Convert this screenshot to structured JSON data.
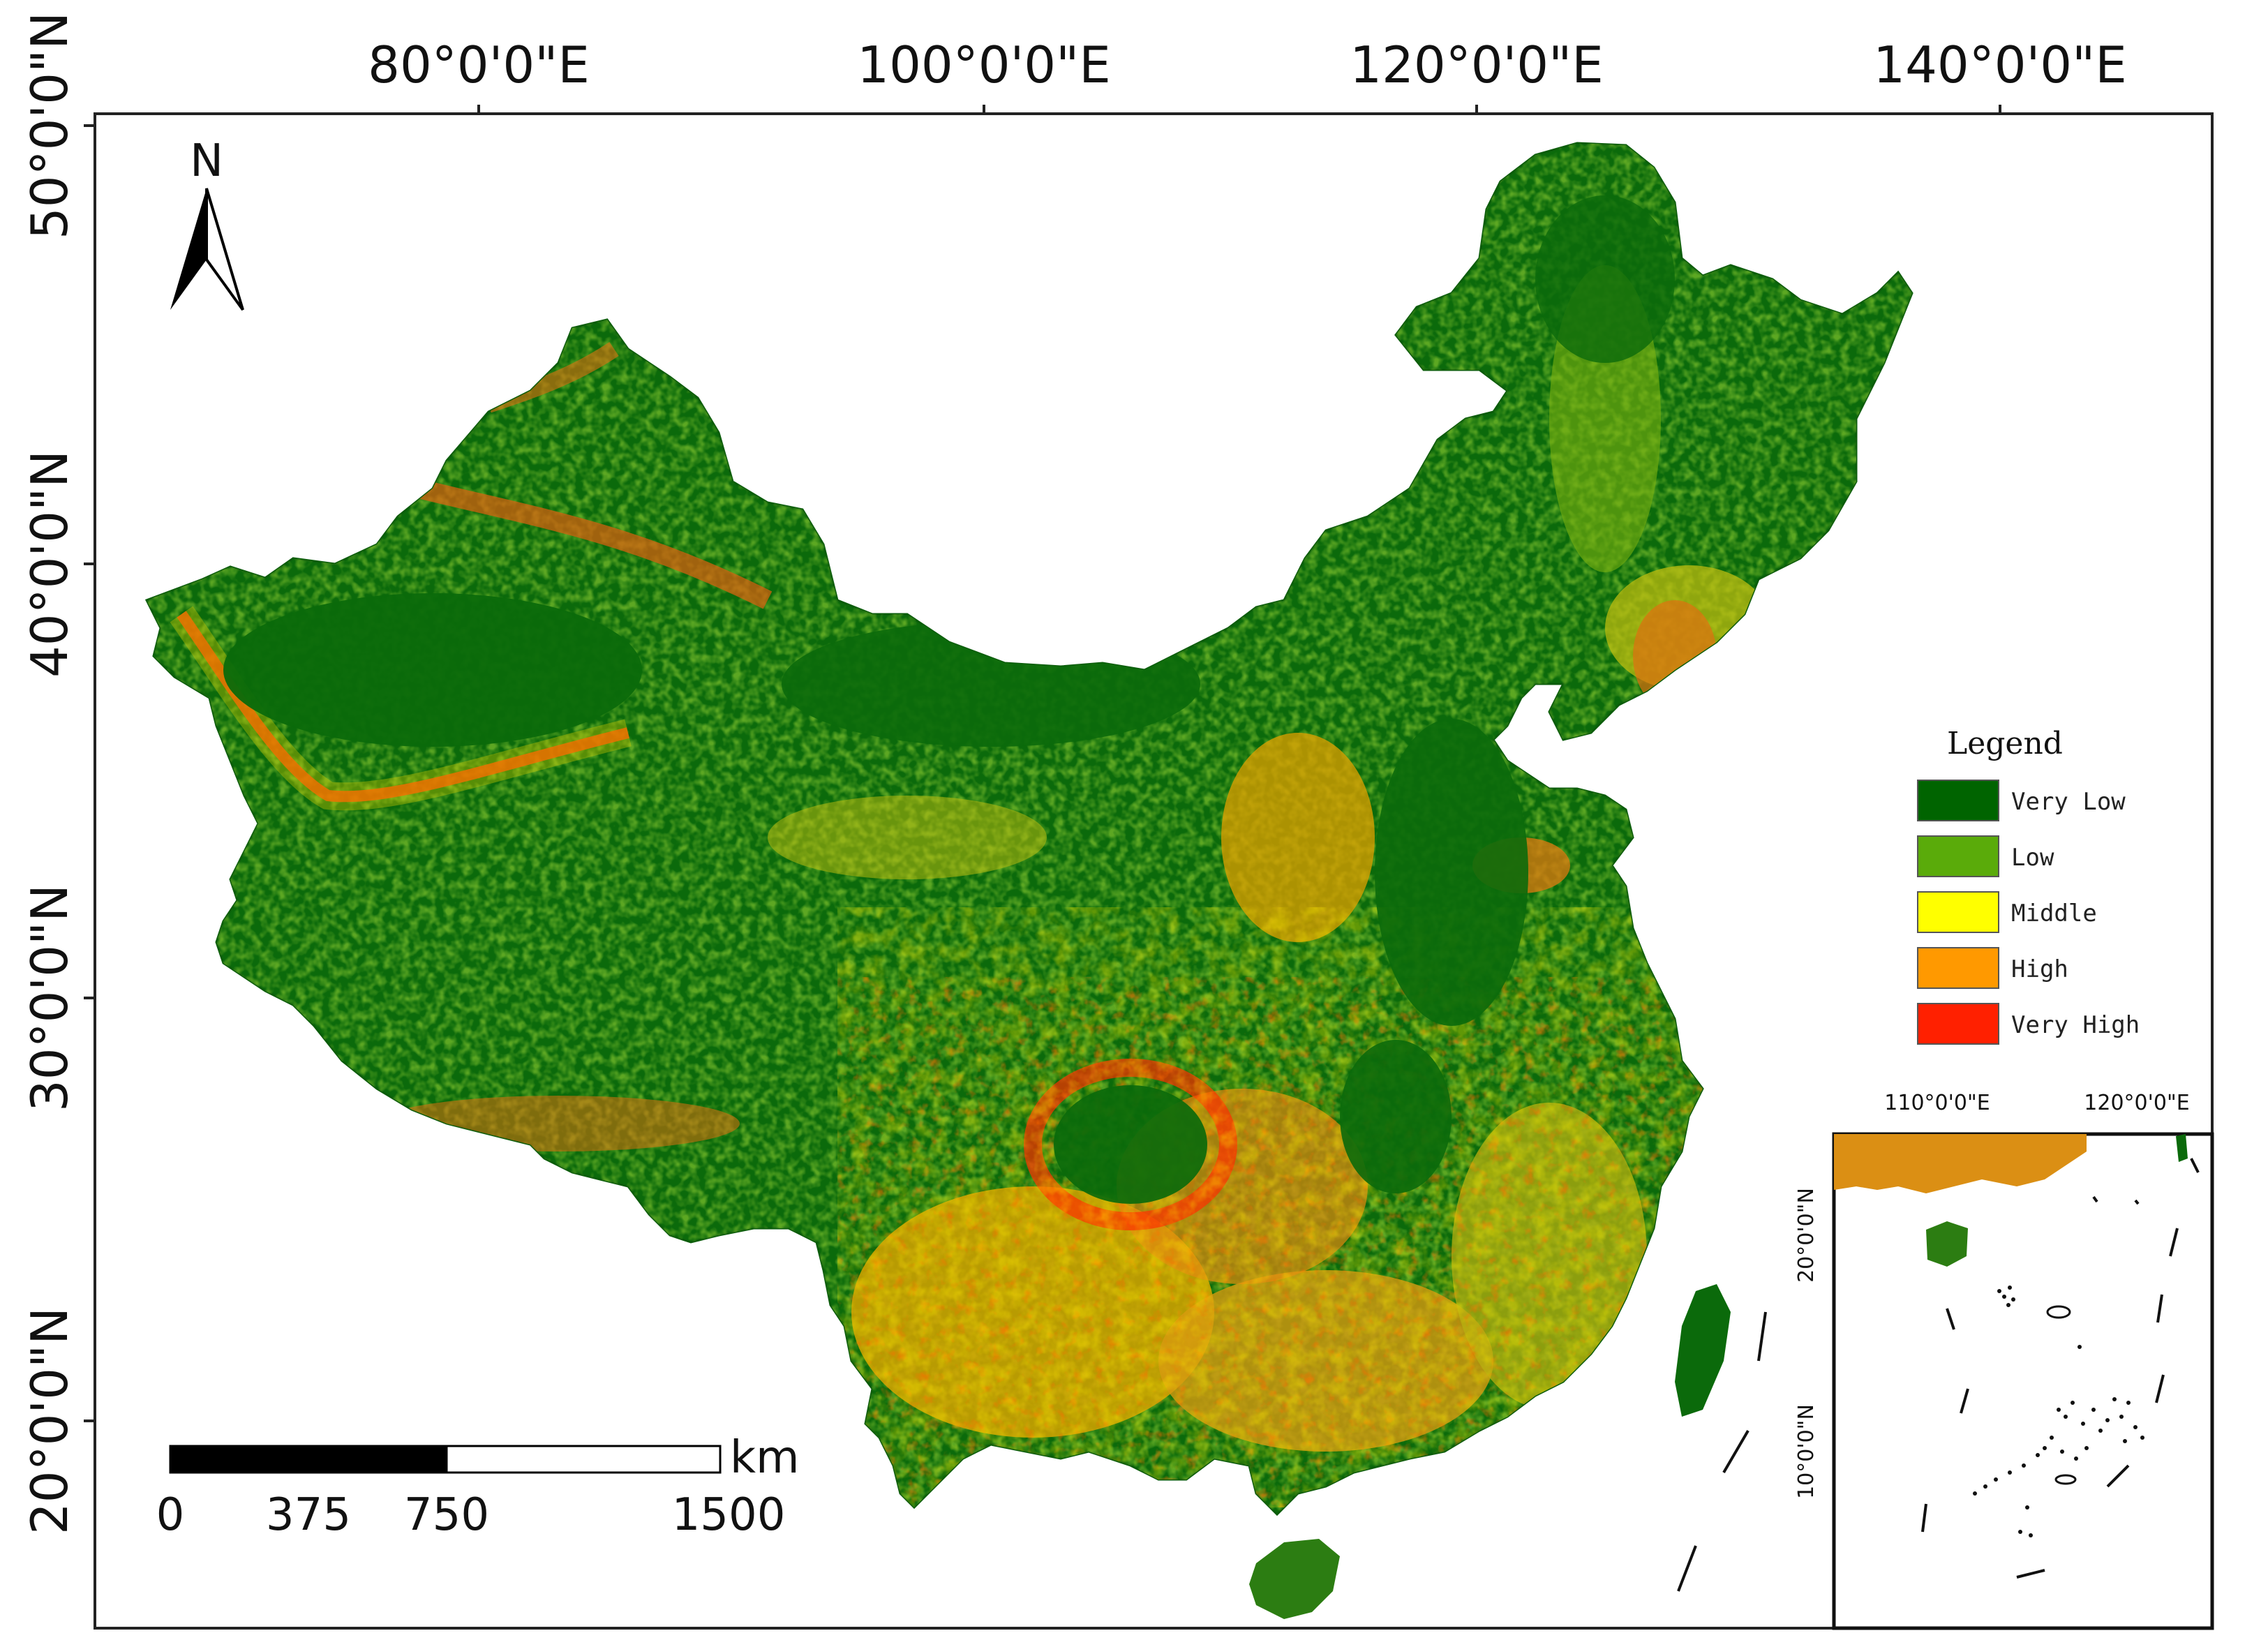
{
  "map": {
    "graticule": {
      "lon_labels": [
        "80°0'0\"E",
        "100°0'0\"E",
        "120°0'0\"E",
        "140°0'0\"E"
      ],
      "lat_labels": [
        "50°0'0\"N",
        "40°0'0\"N",
        "30°0'0\"N",
        "20°0'0\"N"
      ]
    },
    "north_arrow": {
      "label": "N"
    },
    "scale_bar": {
      "ticks": [
        "0",
        "375",
        "750",
        "1500"
      ],
      "unit": "km"
    },
    "legend": {
      "title": "Legend",
      "classes": [
        {
          "label": "Very Low",
          "color": "#006400"
        },
        {
          "label": "Low",
          "color": "#5aab0a"
        },
        {
          "label": "Middle",
          "color": "#ffff00"
        },
        {
          "label": "High",
          "color": "#ff9900"
        },
        {
          "label": "Very High",
          "color": "#ff2000"
        }
      ]
    },
    "inset": {
      "lon_labels": [
        "110°0'0\"E",
        "120°0'0\"E"
      ],
      "lat_labels": [
        "20°0'0\"N",
        "10°0'0\"N"
      ]
    }
  }
}
